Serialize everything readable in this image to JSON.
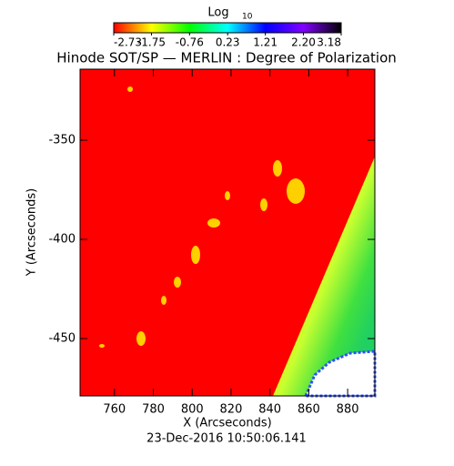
{
  "chart_data": {
    "type": "image",
    "title": "Hinode SOT/SP — MERLIN : Degree of Polarization",
    "x_label": "X (Arcseconds)",
    "y_label": "Y (Arcseconds)",
    "footer": "23-Dec-2016 10:50:06.141",
    "xlim": [
      742.3,
      894
    ],
    "ylim": [
      -478.9,
      -314.2
    ],
    "xticks": [
      760,
      780,
      800,
      820,
      840,
      860,
      880
    ],
    "yticks": [
      -450,
      -400,
      -350
    ],
    "colorbar": {
      "label": "Log",
      "label_sub": "10",
      "clim": [
        -2.73,
        3.18
      ],
      "ticks": [
        -2.73,
        -1.75,
        -0.76,
        0.23,
        1.21,
        {
          "value": 2.2,
          "label": "2.20"
        },
        3.18
      ],
      "colors": [
        "#ff0000",
        "#ffff00",
        "#00ff00",
        "#00ffff",
        "#0000ff",
        "#8000ff",
        "#000000"
      ]
    }
  }
}
